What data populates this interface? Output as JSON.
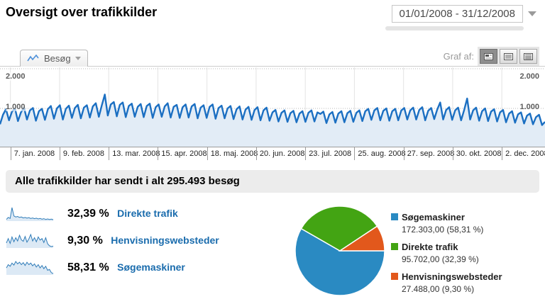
{
  "page": {
    "title": "Oversigt over trafikkilder"
  },
  "date_range": {
    "value": "01/01/2008 - 31/12/2008"
  },
  "toolbar": {
    "tab_label": "Besøg",
    "graph_by_label": "Graf af:"
  },
  "summary": {
    "text": "Alle trafikkilder har sendt i alt 295.493 besøg"
  },
  "colors": {
    "line": "#1b6fc2",
    "area_fill": "#e2ecf6",
    "link": "#1a6cad",
    "pie_blue": "#2a8ac2",
    "pie_green": "#43a413",
    "pie_orange": "#e2581c"
  },
  "sources": [
    {
      "percent": "32,39 %",
      "label": "Direkte trafik",
      "spark": [
        30,
        38,
        34,
        78,
        44,
        40,
        42,
        38,
        40,
        36,
        38,
        35,
        37,
        34,
        36,
        33,
        35,
        32,
        34,
        31,
        33,
        30,
        32,
        30,
        31,
        29
      ]
    },
    {
      "percent": "9,30 %",
      "label": "Henvisningswebsteder",
      "spark": [
        40,
        62,
        38,
        70,
        46,
        66,
        50,
        78,
        56,
        48,
        72,
        44,
        60,
        82,
        50,
        66,
        46,
        70,
        54,
        62,
        42,
        66,
        36,
        26,
        22,
        24
      ]
    },
    {
      "percent": "58,31 %",
      "label": "Søgemaskiner",
      "spark": [
        50,
        58,
        54,
        62,
        57,
        66,
        60,
        64,
        58,
        63,
        56,
        64,
        58,
        62,
        55,
        60,
        52,
        58,
        50,
        56,
        48,
        54,
        44,
        46,
        38,
        36
      ]
    }
  ],
  "chart_data": [
    {
      "type": "line",
      "title": "Besøg",
      "ylabel": "Besøg",
      "ylim": [
        0,
        2000
      ],
      "yticks": {
        "top": "2.000",
        "mid": "1.000"
      },
      "grid": "vertical month gridlines, dotted lines at 1.000 and 2.000",
      "days_total": 366,
      "ticks": [
        {
          "day": 7,
          "label": "7. jan. 2008"
        },
        {
          "day": 40,
          "label": "9. feb. 2008"
        },
        {
          "day": 73,
          "label": "13. mar. 2008"
        },
        {
          "day": 106,
          "label": "15. apr. 2008"
        },
        {
          "day": 139,
          "label": "18. maj. 2008"
        },
        {
          "day": 172,
          "label": "20. jun. 2008"
        },
        {
          "day": 205,
          "label": "23. jul. 2008"
        },
        {
          "day": 238,
          "label": "25. aug. 2008"
        },
        {
          "day": 271,
          "label": "27. sep. 2008"
        },
        {
          "day": 304,
          "label": "30. okt. 2008"
        },
        {
          "day": 337,
          "label": "2. dec. 2008"
        }
      ],
      "note": "daily visits estimated from pixels, sampled every 2nd day",
      "values": [
        600,
        840,
        980,
        700,
        920,
        1000,
        680,
        900,
        1020,
        720,
        950,
        1010,
        690,
        930,
        990,
        710,
        980,
        1060,
        740,
        1000,
        1080,
        720,
        990,
        1070,
        760,
        1010,
        1090,
        750,
        1020,
        1080,
        770,
        1050,
        1130,
        790,
        1080,
        1350,
        820,
        1100,
        1160,
        800,
        1090,
        1150,
        780,
        1060,
        1120,
        790,
        1040,
        1110,
        780,
        1060,
        1120,
        760,
        1030,
        1100,
        790,
        1050,
        1130,
        770,
        1040,
        1090,
        760,
        1030,
        1100,
        770,
        1050,
        1110,
        750,
        1020,
        1080,
        760,
        1040,
        1100,
        740,
        1010,
        1070,
        750,
        1000,
        1060,
        730,
        980,
        1050,
        720,
        970,
        1040,
        710,
        960,
        1030,
        700,
        950,
        1020,
        690,
        900,
        960,
        670,
        890,
        950,
        660,
        880,
        940,
        650,
        870,
        930,
        660,
        890,
        950,
        670,
        900,
        860,
        920,
        630,
        850,
        910,
        640,
        870,
        930,
        650,
        880,
        940,
        660,
        890,
        950,
        680,
        930,
        990,
        710,
        950,
        1010,
        700,
        940,
        1000,
        690,
        930,
        990,
        700,
        950,
        1010,
        720,
        950,
        1020,
        720,
        960,
        1030,
        700,
        940,
        1010,
        730,
        970,
        1150,
        720,
        960,
        1030,
        710,
        950,
        1020,
        700,
        960,
        1250,
        720,
        950,
        1020,
        690,
        930,
        1000,
        680,
        920,
        980,
        670,
        900,
        960,
        650,
        870,
        930,
        640,
        850,
        900,
        620,
        820,
        870,
        600,
        780,
        840,
        580,
        660
      ],
      "line_color": "#1b6fc2",
      "fill_color": "#e2ecf6"
    },
    {
      "type": "pie",
      "start_angle_deg": 0,
      "direction": "clockwise",
      "slices": [
        {
          "label": "Søgemaskiner",
          "value": "172.303,00 (58,31 %)",
          "pct": 58.31,
          "color": "#2a8ac2"
        },
        {
          "label": "Direkte trafik",
          "value": "95.702,00 (32,39 %)",
          "pct": 32.39,
          "color": "#43a413"
        },
        {
          "label": "Henvisningswebsteder",
          "value": "27.488,00 (9,30 %)",
          "pct": 9.3,
          "color": "#e2581c"
        }
      ]
    }
  ]
}
